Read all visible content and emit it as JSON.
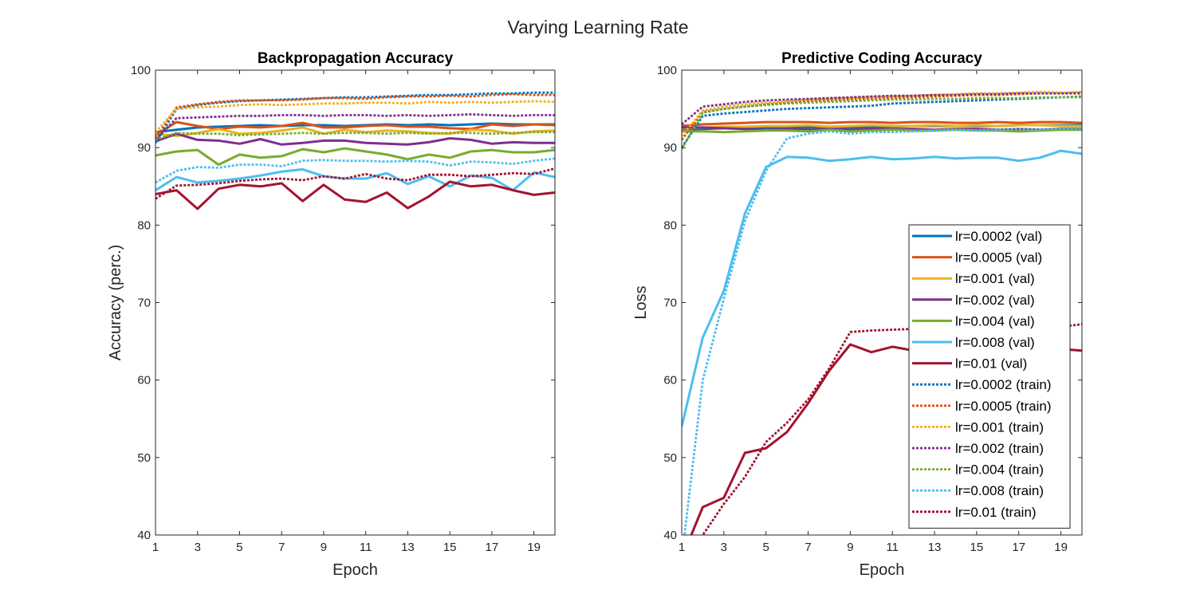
{
  "figure": {
    "title": "Varying Learning Rate"
  },
  "chart_data": [
    {
      "type": "line",
      "title": "Backpropagation Accuracy",
      "xlabel": "Epoch",
      "ylabel": "Accuracy (perc.)",
      "xlim": [
        1,
        20
      ],
      "ylim": [
        40,
        100
      ],
      "xticks": [
        1,
        3,
        5,
        7,
        9,
        11,
        13,
        15,
        17,
        19
      ],
      "yticks": [
        40,
        50,
        60,
        70,
        80,
        90,
        100
      ],
      "grid": false,
      "x": [
        1,
        2,
        3,
        4,
        5,
        6,
        7,
        8,
        9,
        10,
        11,
        12,
        13,
        14,
        15,
        16,
        17,
        18,
        19,
        20
      ],
      "series": [
        {
          "name": "lr=0.0002 (val)",
          "color": "#0072BD",
          "dash": "solid",
          "values": [
            92.0,
            92.3,
            92.6,
            92.7,
            92.8,
            92.9,
            92.8,
            92.9,
            92.9,
            92.8,
            92.9,
            93.0,
            92.9,
            93.0,
            92.9,
            93.0,
            93.1,
            93.0,
            93.0,
            93.0
          ]
        },
        {
          "name": "lr=0.0005 (val)",
          "color": "#D95319",
          "dash": "solid",
          "values": [
            91.6,
            93.3,
            92.8,
            92.4,
            92.7,
            92.6,
            92.8,
            93.2,
            92.6,
            92.6,
            92.8,
            92.9,
            92.7,
            92.7,
            92.5,
            92.4,
            93.0,
            92.8,
            93.0,
            92.9
          ]
        },
        {
          "name": "lr=0.001 (val)",
          "color": "#EDB120",
          "dash": "solid",
          "values": [
            91.8,
            91.5,
            91.9,
            92.4,
            91.8,
            91.9,
            92.2,
            92.6,
            91.8,
            92.3,
            92.0,
            92.2,
            92.1,
            91.9,
            91.8,
            92.3,
            92.2,
            91.8,
            92.1,
            92.2
          ]
        },
        {
          "name": "lr=0.002 (val)",
          "color": "#7E2F8E",
          "dash": "solid",
          "values": [
            90.8,
            91.8,
            91.0,
            90.9,
            90.5,
            91.1,
            90.4,
            90.6,
            90.9,
            90.9,
            90.6,
            90.5,
            90.4,
            90.7,
            91.2,
            91.0,
            90.5,
            90.7,
            90.6,
            90.6
          ]
        },
        {
          "name": "lr=0.004 (val)",
          "color": "#77AC30",
          "dash": "solid",
          "values": [
            89.0,
            89.5,
            89.7,
            87.8,
            89.1,
            88.7,
            88.9,
            89.8,
            89.4,
            89.9,
            89.5,
            89.1,
            88.5,
            89.1,
            88.7,
            89.5,
            89.7,
            89.4,
            89.4,
            89.7
          ]
        },
        {
          "name": "lr=0.008 (val)",
          "color": "#4DBEEE",
          "dash": "solid",
          "values": [
            84.5,
            86.2,
            85.5,
            85.7,
            86.0,
            86.4,
            86.9,
            87.2,
            86.3,
            86.0,
            86.0,
            86.7,
            85.3,
            86.3,
            85.0,
            86.4,
            86.1,
            84.5,
            86.8,
            86.2
          ]
        },
        {
          "name": "lr=0.01 (val)",
          "color": "#A2142F",
          "dash": "solid",
          "values": [
            84.0,
            84.5,
            82.1,
            84.7,
            85.2,
            85.0,
            85.4,
            83.1,
            85.2,
            83.3,
            83.0,
            84.2,
            82.2,
            83.7,
            85.6,
            85.0,
            85.2,
            84.5,
            83.9,
            84.2
          ]
        },
        {
          "name": "lr=0.0002 (train)",
          "color": "#0072BD",
          "dash": "dot",
          "values": [
            90.6,
            95.0,
            95.5,
            95.8,
            96.0,
            96.1,
            96.2,
            96.3,
            96.4,
            96.5,
            96.5,
            96.6,
            96.7,
            96.8,
            96.8,
            96.9,
            97.0,
            97.0,
            97.1,
            97.1
          ]
        },
        {
          "name": "lr=0.0005 (train)",
          "color": "#D95319",
          "dash": "dot",
          "values": [
            91.2,
            95.2,
            95.6,
            95.9,
            96.1,
            96.1,
            96.1,
            96.2,
            96.4,
            96.4,
            96.3,
            96.5,
            96.6,
            96.6,
            96.7,
            96.6,
            96.8,
            96.9,
            96.8,
            96.8
          ]
        },
        {
          "name": "lr=0.001 (train)",
          "color": "#EDB120",
          "dash": "dot",
          "values": [
            92.0,
            95.0,
            95.2,
            95.3,
            95.5,
            95.6,
            95.5,
            95.6,
            95.7,
            95.7,
            95.8,
            95.8,
            95.7,
            95.9,
            95.8,
            95.9,
            95.8,
            95.9,
            96.0,
            95.9
          ]
        },
        {
          "name": "lr=0.002 (train)",
          "color": "#7E2F8E",
          "dash": "dot",
          "values": [
            91.0,
            93.8,
            93.9,
            94.0,
            94.1,
            94.1,
            94.2,
            94.2,
            94.1,
            94.2,
            94.2,
            94.1,
            94.2,
            94.1,
            94.2,
            94.3,
            94.2,
            94.1,
            94.2,
            94.2
          ]
        },
        {
          "name": "lr=0.004 (train)",
          "color": "#77AC30",
          "dash": "dot",
          "values": [
            91.0,
            91.9,
            91.8,
            91.8,
            91.6,
            91.7,
            91.8,
            91.9,
            91.8,
            91.9,
            91.9,
            91.8,
            91.9,
            91.8,
            91.9,
            91.9,
            91.8,
            91.9,
            92.0,
            92.0
          ]
        },
        {
          "name": "lr=0.008 (train)",
          "color": "#4DBEEE",
          "dash": "dot",
          "values": [
            85.5,
            87.0,
            87.5,
            87.4,
            87.8,
            87.8,
            87.6,
            88.3,
            88.4,
            88.3,
            88.3,
            88.2,
            88.3,
            88.2,
            87.7,
            88.2,
            88.1,
            87.9,
            88.3,
            88.6
          ]
        },
        {
          "name": "lr=0.01 (train)",
          "color": "#A2142F",
          "dash": "dot",
          "values": [
            83.4,
            85.1,
            85.2,
            85.4,
            85.7,
            85.9,
            86.0,
            85.8,
            86.3,
            86.0,
            86.6,
            86.0,
            85.8,
            86.5,
            86.5,
            86.3,
            86.5,
            86.7,
            86.6,
            87.3
          ]
        }
      ]
    },
    {
      "type": "line",
      "title": "Predictive Coding Accuracy",
      "xlabel": "Epoch",
      "ylabel": "Loss",
      "xlim": [
        1,
        20
      ],
      "ylim": [
        40,
        100
      ],
      "xticks": [
        1,
        3,
        5,
        7,
        9,
        11,
        13,
        15,
        17,
        19
      ],
      "yticks": [
        40,
        50,
        60,
        70,
        80,
        90,
        100
      ],
      "grid": false,
      "legend_position": "lower right",
      "x": [
        1,
        2,
        3,
        4,
        5,
        6,
        7,
        8,
        9,
        10,
        11,
        12,
        13,
        14,
        15,
        16,
        17,
        18,
        19,
        20
      ],
      "series": [
        {
          "name": "lr=0.0002 (val)",
          "color": "#0072BD",
          "dash": "solid",
          "values": [
            92.3,
            92.4,
            92.5,
            92.5,
            92.6,
            92.6,
            92.6,
            92.7,
            92.6,
            92.7,
            92.7,
            92.8,
            92.8,
            92.8,
            92.8,
            92.8,
            92.9,
            92.9,
            92.9,
            92.9
          ]
        },
        {
          "name": "lr=0.0005 (val)",
          "color": "#D95319",
          "dash": "solid",
          "values": [
            92.8,
            93.0,
            93.1,
            93.2,
            93.3,
            93.3,
            93.3,
            93.2,
            93.3,
            93.3,
            93.2,
            93.3,
            93.3,
            93.2,
            93.2,
            93.3,
            93.2,
            93.3,
            93.3,
            93.2
          ]
        },
        {
          "name": "lr=0.001 (val)",
          "color": "#EDB120",
          "dash": "solid",
          "values": [
            92.5,
            92.6,
            92.7,
            92.7,
            92.8,
            92.8,
            92.9,
            92.7,
            92.8,
            92.9,
            92.8,
            92.8,
            92.9,
            92.8,
            92.9,
            92.8,
            92.9,
            92.9,
            92.8,
            92.8
          ]
        },
        {
          "name": "lr=0.002 (val)",
          "color": "#7E2F8E",
          "dash": "solid",
          "values": [
            92.6,
            92.6,
            92.5,
            92.4,
            92.3,
            92.4,
            92.3,
            92.4,
            92.3,
            92.4,
            92.4,
            92.4,
            92.3,
            92.4,
            92.4,
            92.3,
            92.4,
            92.3,
            92.4,
            92.4
          ]
        },
        {
          "name": "lr=0.004 (val)",
          "color": "#77AC30",
          "dash": "solid",
          "values": [
            92.1,
            92.1,
            92.0,
            92.1,
            92.2,
            92.2,
            92.1,
            92.3,
            92.1,
            92.2,
            92.3,
            92.2,
            92.2,
            92.3,
            92.2,
            92.2,
            92.1,
            92.2,
            92.3,
            92.3
          ]
        },
        {
          "name": "lr=0.008 (val)",
          "color": "#4DBEEE",
          "dash": "solid",
          "values": [
            54.0,
            65.5,
            71.5,
            81.5,
            87.5,
            88.8,
            88.7,
            88.3,
            88.5,
            88.8,
            88.5,
            88.6,
            88.8,
            88.6,
            88.7,
            88.7,
            88.3,
            88.7,
            89.6,
            89.2
          ]
        },
        {
          "name": "lr=0.01 (val)",
          "color": "#A2142F",
          "dash": "solid",
          "values": [
            37.0,
            43.6,
            44.8,
            50.6,
            51.2,
            53.3,
            57.0,
            61.2,
            64.6,
            63.6,
            64.3,
            63.8,
            63.9,
            64.1,
            64.2,
            63.7,
            64.2,
            64.2,
            64.0,
            63.8
          ]
        },
        {
          "name": "lr=0.0002 (train)",
          "color": "#0072BD",
          "dash": "dot",
          "values": [
            90.0,
            94.1,
            94.4,
            94.6,
            94.8,
            95.0,
            95.1,
            95.2,
            95.3,
            95.4,
            95.7,
            95.8,
            95.9,
            96.0,
            96.1,
            96.2,
            96.3,
            96.4,
            96.5,
            96.6
          ]
        },
        {
          "name": "lr=0.0005 (train)",
          "color": "#D95319",
          "dash": "dot",
          "values": [
            91.0,
            94.6,
            95.0,
            95.3,
            95.6,
            95.8,
            96.0,
            96.1,
            96.2,
            96.3,
            96.4,
            96.5,
            96.6,
            96.7,
            96.8,
            96.8,
            96.9,
            97.0,
            97.0,
            97.1
          ]
        },
        {
          "name": "lr=0.001 (train)",
          "color": "#EDB120",
          "dash": "dot",
          "values": [
            91.5,
            94.8,
            95.3,
            95.6,
            95.8,
            96.0,
            96.2,
            96.3,
            96.4,
            96.5,
            96.6,
            96.7,
            96.8,
            96.9,
            97.0,
            97.0,
            97.1,
            97.2,
            97.1,
            97.2
          ]
        },
        {
          "name": "lr=0.002 (train)",
          "color": "#7E2F8E",
          "dash": "dot",
          "values": [
            93.0,
            95.3,
            95.6,
            95.9,
            96.1,
            96.2,
            96.3,
            96.4,
            96.5,
            96.6,
            96.7,
            96.7,
            96.8,
            96.8,
            96.9,
            96.9,
            97.0,
            97.0,
            97.0,
            97.0
          ]
        },
        {
          "name": "lr=0.004 (train)",
          "color": "#77AC30",
          "dash": "dot",
          "values": [
            89.8,
            94.5,
            95.0,
            95.3,
            95.5,
            95.7,
            95.8,
            95.9,
            96.0,
            96.1,
            96.2,
            96.2,
            96.3,
            96.3,
            96.4,
            96.4,
            96.4,
            96.5,
            96.5,
            96.5
          ]
        },
        {
          "name": "lr=0.008 (train)",
          "color": "#4DBEEE",
          "dash": "dot",
          "values": [
            37.0,
            60.0,
            70.5,
            80.5,
            87.0,
            91.2,
            91.8,
            92.1,
            91.8,
            92.0,
            92.0,
            92.1,
            92.2,
            92.3,
            92.2,
            92.3,
            92.4,
            92.3,
            92.5,
            92.6
          ]
        },
        {
          "name": "lr=0.01 (train)",
          "color": "#A2142F",
          "dash": "dot",
          "values": [
            34.0,
            40.0,
            44.0,
            47.5,
            52.0,
            54.5,
            57.5,
            61.5,
            66.2,
            66.4,
            66.5,
            66.6,
            66.6,
            66.7,
            66.7,
            66.7,
            66.8,
            66.8,
            66.9,
            67.2
          ]
        }
      ]
    }
  ]
}
